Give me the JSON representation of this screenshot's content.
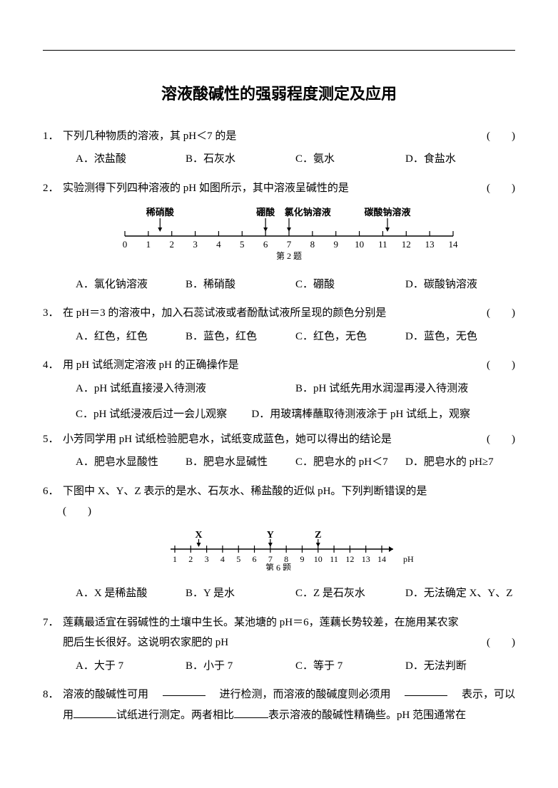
{
  "title": "溶液酸碱性的强弱程度测定及应用",
  "questions": {
    "q1": {
      "num": "1．",
      "stem": "下列几种物质的溶液，其 pH＜7 的是",
      "paren": "(　　)",
      "opts": [
        "A．浓盐酸",
        "B．石灰水",
        "C．氨水",
        "D．食盐水"
      ]
    },
    "q2": {
      "num": "2．",
      "stem": "实验测得下列四种溶液的 pH 如图所示，其中溶液呈碱性的是",
      "paren": "(　　)",
      "opts": [
        "A．氯化钠溶液",
        "B．稀硝酸",
        "C．硼酸",
        "D．碳酸钠溶液"
      ],
      "fig": {
        "labels_top": [
          {
            "x": 1.5,
            "t": "稀硝酸"
          },
          {
            "x": 6,
            "t": "硼酸"
          },
          {
            "x": 7.8,
            "t": "氯化钠溶液"
          },
          {
            "x": 11.2,
            "t": "碳酸钠溶液"
          }
        ],
        "arrows": [
          1.5,
          6,
          7,
          11.2
        ],
        "ticks": [
          0,
          1,
          2,
          3,
          4,
          5,
          6,
          7,
          8,
          9,
          10,
          11,
          12,
          13,
          14
        ],
        "caption": "第 2 题"
      }
    },
    "q3": {
      "num": "3．",
      "stem": "在 pH＝3 的溶液中，加入石蕊试液或者酚酞试液所呈现的颜色分别是",
      "paren": "(　　)",
      "opts": [
        "A．红色，红色",
        "B．蓝色，红色",
        "C．红色，无色",
        "D．蓝色，无色"
      ]
    },
    "q4": {
      "num": "4．",
      "stem": "用 pH 试纸测定溶液 pH 的正确操作是",
      "paren": "(　　)",
      "optsA": "A．pH 试纸直接浸入待测液",
      "optsB": "B．pH 试纸先用水润湿再浸入待测液",
      "optsC": "C．pH 试纸浸液后过一会儿观察",
      "optsD": "D．用玻璃棒蘸取待测液涂于 pH 试纸上，观察"
    },
    "q5": {
      "num": "5．",
      "stem": "小芳同学用 pH 试纸检验肥皂水，试纸变成蓝色，她可以得出的结论是",
      "paren": "(　　)",
      "opts": [
        "A．肥皂水显酸性",
        "B．肥皂水显碱性",
        "C．肥皂水的 pH＜7",
        "D．肥皂水的 pH≥7"
      ]
    },
    "q6": {
      "num": "6．",
      "stem": "下图中 X、Y、Z 表示的是水、石灰水、稀盐酸的近似 pH。下列判断错误的是",
      "paren": "(　　)",
      "fig": {
        "marks": [
          {
            "x": 2.5,
            "t": "X"
          },
          {
            "x": 7,
            "t": "Y"
          },
          {
            "x": 10,
            "t": "Z"
          }
        ],
        "ticks": [
          1,
          2,
          3,
          4,
          5,
          6,
          7,
          8,
          9,
          10,
          11,
          12,
          13,
          14
        ],
        "axis_label": "pH",
        "caption": "第 6 题"
      },
      "opts": [
        "A．X 是稀盐酸",
        "B．Y 是水",
        "C．Z 是石灰水",
        "D．无法确定 X、Y、Z"
      ]
    },
    "q7": {
      "num": "7．",
      "stem1": "莲藕最适宜在弱碱性的土壤中生长。某池塘的 pH＝6，莲藕长势较差，在施用某农家",
      "stem2": "肥后生长很好。这说明农家肥的 pH",
      "paren": "(　　)",
      "opts": [
        "A．大于 7",
        "B．小于 7",
        "C．等于 7",
        "D．无法判断"
      ]
    },
    "q8": {
      "num": "8．",
      "line1a": "溶液的酸碱性可用",
      "line1b": "进行检测，而溶液的酸碱度则必须用",
      "line1c": "表示，可以",
      "line2a": "用",
      "line2b": "试纸进行测定。两者相比",
      "line2c": "表示溶液的酸碱性精确些。pH 范围通常在"
    }
  }
}
